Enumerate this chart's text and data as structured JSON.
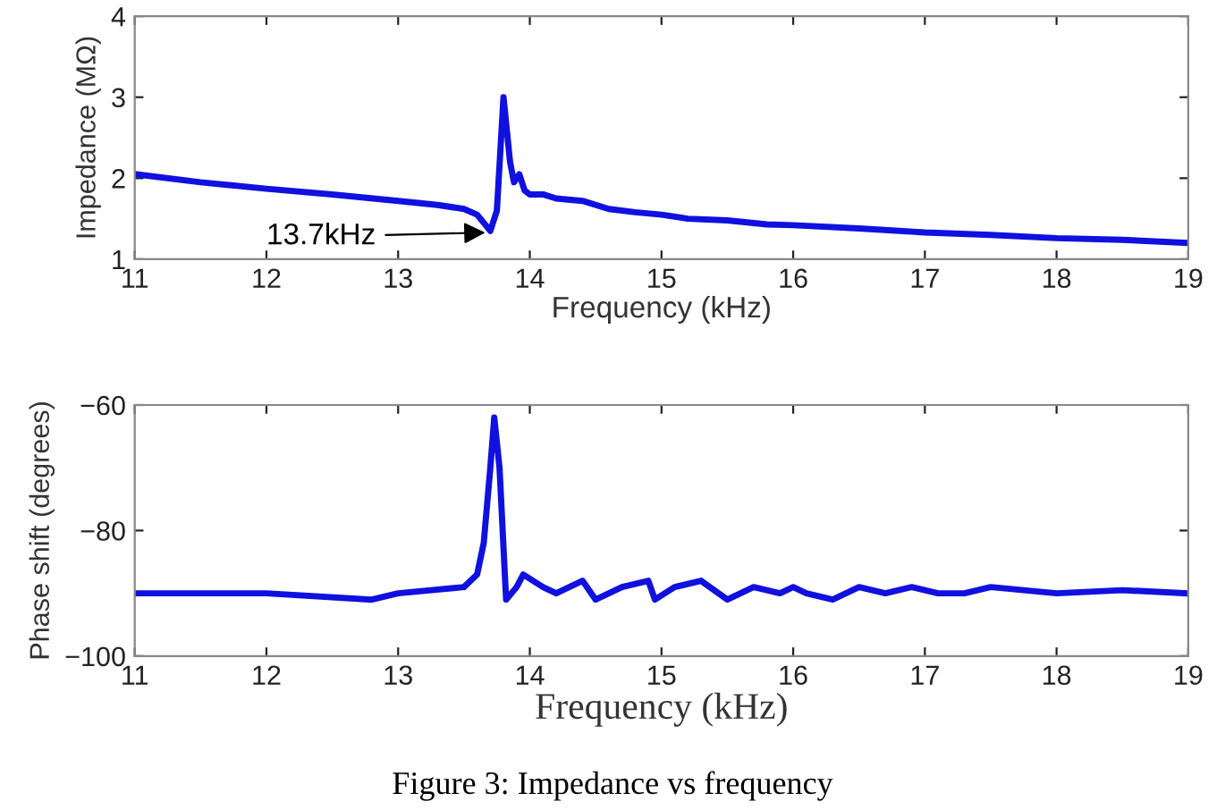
{
  "chart_data": [
    {
      "type": "line",
      "xlabel": "Frequency (kHz)",
      "ylabel": "Impedance (MΩ)",
      "xlim": [
        11,
        19
      ],
      "xticks": [
        11,
        12,
        13,
        14,
        15,
        16,
        17,
        18,
        19
      ],
      "ylim": [
        1,
        4
      ],
      "yticks": [
        1,
        2,
        3,
        4
      ],
      "grid": false,
      "series": [
        {
          "color": "#1010e0",
          "x": [
            11,
            11.5,
            12,
            12.5,
            13,
            13.3,
            13.5,
            13.6,
            13.7,
            13.75,
            13.8,
            13.85,
            13.88,
            13.92,
            13.96,
            14.0,
            14.1,
            14.2,
            14.4,
            14.6,
            14.8,
            15.0,
            15.2,
            15.5,
            15.8,
            16.0,
            16.5,
            17.0,
            17.5,
            18.0,
            18.5,
            19
          ],
          "values": [
            2.05,
            1.95,
            1.87,
            1.8,
            1.72,
            1.67,
            1.62,
            1.55,
            1.35,
            1.6,
            3.0,
            2.2,
            1.95,
            2.05,
            1.85,
            1.8,
            1.8,
            1.75,
            1.72,
            1.62,
            1.58,
            1.55,
            1.5,
            1.48,
            1.43,
            1.42,
            1.38,
            1.33,
            1.3,
            1.26,
            1.24,
            1.2
          ]
        }
      ],
      "annotations": [
        {
          "text": "13.7kHz",
          "x": 13.7,
          "y": 1.33
        }
      ]
    },
    {
      "type": "line",
      "xlabel": "Frequency (kHz)",
      "ylabel": "Phase shift (degrees)",
      "xlim": [
        11,
        19
      ],
      "xticks": [
        11,
        12,
        13,
        14,
        15,
        16,
        17,
        18,
        19
      ],
      "ylim": [
        -100,
        -60
      ],
      "yticks": [
        {
          "value": -100,
          "label": "−100"
        },
        {
          "value": -80,
          "label": "−80"
        },
        {
          "value": -60,
          "label": "−60"
        }
      ],
      "grid": false,
      "series": [
        {
          "color": "#1010e0",
          "x": [
            11,
            12,
            12.8,
            13,
            13.5,
            13.6,
            13.65,
            13.7,
            13.73,
            13.77,
            13.82,
            13.9,
            13.95,
            14.1,
            14.2,
            14.4,
            14.5,
            14.7,
            14.9,
            14.95,
            15.1,
            15.3,
            15.5,
            15.7,
            15.9,
            16.0,
            16.1,
            16.3,
            16.5,
            16.7,
            16.9,
            17.1,
            17.3,
            17.5,
            18,
            18.5,
            19
          ],
          "values": [
            -90,
            -90,
            -91,
            -90,
            -89,
            -87,
            -82,
            -70,
            -62,
            -70,
            -91,
            -89,
            -87,
            -89,
            -90,
            -88,
            -91,
            -89,
            -88,
            -91,
            -89,
            -88,
            -91,
            -89,
            -90,
            -89,
            -90,
            -91,
            -89,
            -90,
            -89,
            -90,
            -90,
            -89,
            -90,
            -89.5,
            -90
          ]
        }
      ],
      "annotations": [
        "Figure 3: Impedance vs frequency"
      ]
    }
  ]
}
